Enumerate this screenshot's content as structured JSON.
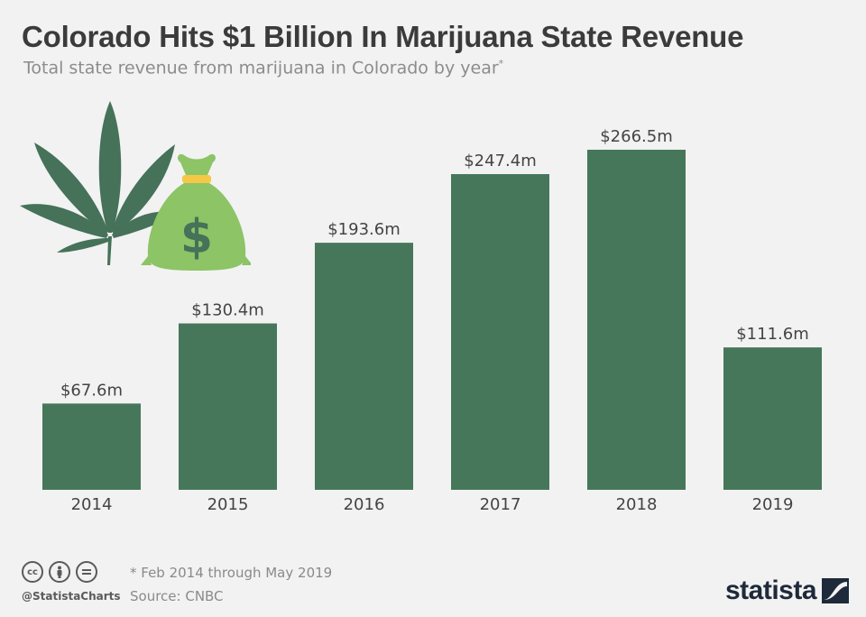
{
  "header": {
    "title": "Colorado Hits $1 Billion In Marijuana State Revenue",
    "subtitle": "Total state revenue from marijuana in Colorado by year",
    "subtitle_mark": "*"
  },
  "chart_data": {
    "type": "bar",
    "title": "Colorado Hits $1 Billion In Marijuana State Revenue",
    "subtitle": "Total state revenue from marijuana in Colorado by year*",
    "categories": [
      "2014",
      "2015",
      "2016",
      "2017",
      "2018",
      "2019"
    ],
    "values": [
      67.6,
      130.4,
      193.6,
      247.4,
      266.5,
      111.6
    ],
    "value_labels": [
      "$67.6m",
      "$130.4m",
      "$193.6m",
      "$247.4m",
      "$266.5m",
      "$111.6m"
    ],
    "xlabel": "",
    "ylabel": "",
    "ylim": [
      0,
      266.5
    ],
    "grid": false,
    "legend": "none",
    "bar_color": "#46775a"
  },
  "footer": {
    "note": "* Feb 2014 through May 2019",
    "source": "Source: CNBC",
    "handle": "@StatistaCharts",
    "brand": "statista",
    "license_icons": [
      "cc-icon",
      "by-icon",
      "nd-icon"
    ]
  },
  "colors": {
    "background": "#f2f2f2",
    "bar": "#46775a",
    "leaf": "#457259",
    "money_bag": "#8cc466",
    "money_bag_tie": "#f5c945"
  },
  "illustration": {
    "icons": [
      "cannabis-leaf-icon",
      "money-bag-icon"
    ],
    "bag_symbol": "$"
  }
}
